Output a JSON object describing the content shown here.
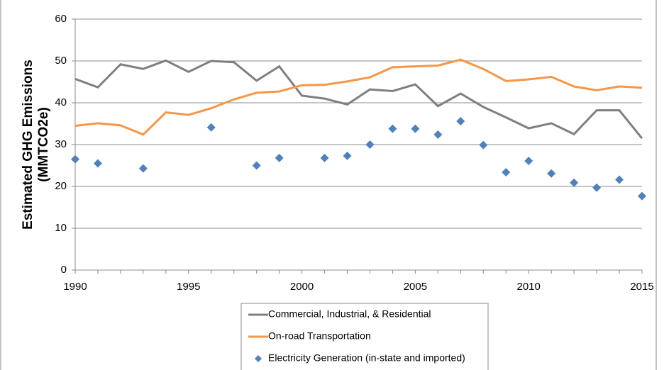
{
  "chart_data": {
    "type": "line",
    "y_label": [
      "Estimated GHG Emissions",
      "(MMTCO2e)"
    ],
    "x": [
      1990,
      1991,
      1992,
      1993,
      1994,
      1995,
      1996,
      1997,
      1998,
      1999,
      2000,
      2001,
      2002,
      2003,
      2004,
      2005,
      2006,
      2007,
      2008,
      2009,
      2010,
      2011,
      2012,
      2013,
      2014,
      2015
    ],
    "series": [
      {
        "name": "Commercial, Industrial, & Residential",
        "color": "#7f7f7f",
        "mode": "line",
        "values": [
          45.7,
          43.7,
          49.2,
          48.1,
          50.1,
          47.4,
          50.0,
          49.7,
          45.3,
          48.7,
          41.7,
          41.0,
          39.6,
          43.2,
          42.8,
          44.4,
          39.2,
          42.2,
          39.0,
          36.5,
          33.9,
          35.1,
          32.5,
          38.2,
          38.2,
          31.5
        ]
      },
      {
        "name": "On-road Transportation",
        "color": "#f79646",
        "mode": "line",
        "values": [
          34.5,
          35.1,
          34.6,
          32.4,
          37.7,
          37.1,
          38.7,
          40.8,
          42.4,
          42.7,
          44.2,
          44.3,
          45.1,
          46.1,
          48.5,
          48.7,
          48.9,
          50.3,
          48.1,
          45.2,
          45.6,
          46.2,
          43.9,
          43.0,
          43.9,
          43.6
        ]
      },
      {
        "name": "Electricity Generation (in-state and imported)",
        "color": "#4f81bd",
        "mode": "markers",
        "values": [
          26.5,
          25.5,
          null,
          24.3,
          null,
          null,
          34.1,
          null,
          25.0,
          26.8,
          null,
          26.8,
          27.3,
          30.0,
          33.8,
          33.8,
          32.4,
          35.6,
          29.9,
          23.4,
          26.1,
          23.1,
          20.9,
          19.7,
          21.6,
          17.7
        ]
      }
    ],
    "xlim": [
      1990,
      2015
    ],
    "xticks": [
      1990,
      1995,
      2000,
      2005,
      2010,
      2015
    ],
    "ylim": [
      0,
      60
    ],
    "yticks": [
      0,
      10,
      20,
      30,
      40,
      50,
      60
    ],
    "grid": true
  }
}
